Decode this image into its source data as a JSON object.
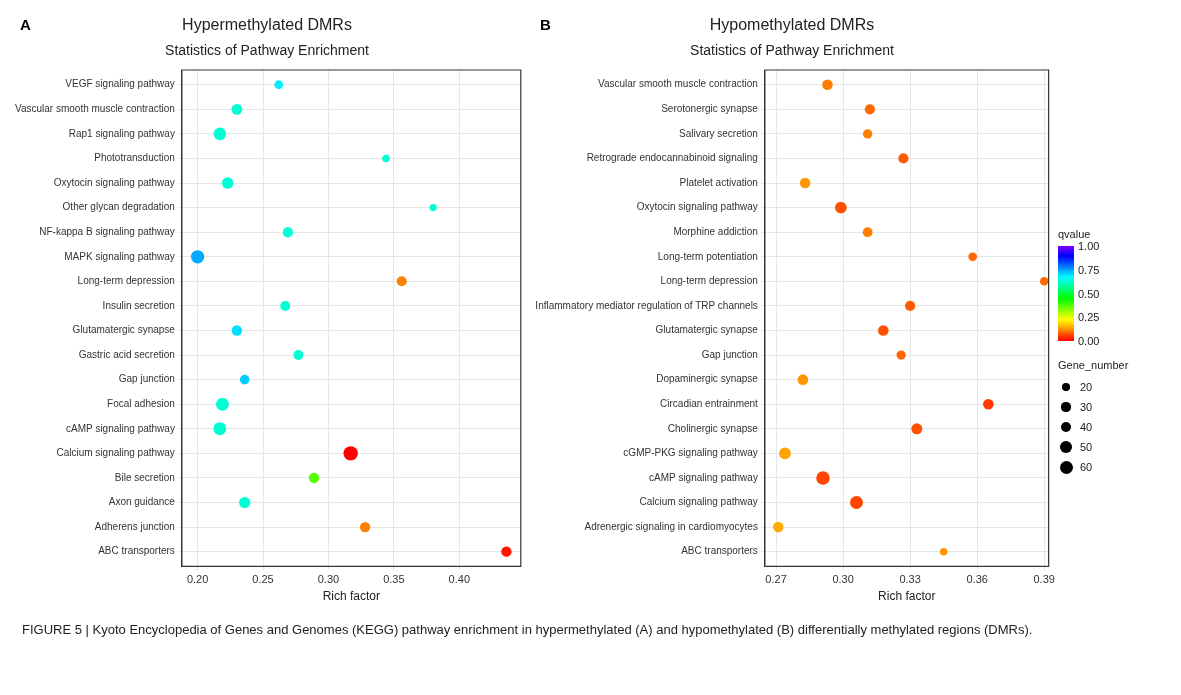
{
  "chart_data": [
    {
      "type": "bubble",
      "title": "Hypermethylated DMRs",
      "subtitle": "Statistics of Pathway Enrichment",
      "xlabel": "Rich factor",
      "orientation": "horizontal",
      "annotations": [
        "A"
      ],
      "categories": [
        "VEGF signaling pathway",
        "Vascular smooth muscle contraction",
        "Rap1 signaling pathway",
        "Phototransduction",
        "Oxytocin signaling pathway",
        "Other glycan degradation",
        "NF-kappa B signaling pathway",
        "MAPK signaling pathway",
        "Long-term depression",
        "Insulin secretion",
        "Glutamatergic synapse",
        "Gastric acid secretion",
        "Gap junction",
        "Focal adhesion",
        "cAMP signaling pathway",
        "Calcium signaling pathway",
        "Bile secretion",
        "Axon guidance",
        "Adherens junction",
        "ABC transporters"
      ],
      "values": [
        0.262,
        0.23,
        0.217,
        0.344,
        0.223,
        0.38,
        0.269,
        0.2,
        0.356,
        0.267,
        0.23,
        0.277,
        0.236,
        0.219,
        0.217,
        0.317,
        0.289,
        0.236,
        0.328,
        0.436
      ],
      "sizes": [
        0.37,
        0.56,
        0.76,
        0.28,
        0.65,
        0.25,
        0.52,
        0.85,
        0.48,
        0.48,
        0.52,
        0.48,
        0.44,
        0.8,
        0.8,
        1,
        0.52,
        0.61,
        0.52,
        0.52
      ],
      "colors": [
        "#00eeff",
        "#00ffd4",
        "#00ffd4",
        "#00ffd4",
        "#00ffd4",
        "#00ffd4",
        "#00ffd4",
        "#00aaff",
        "#ff8000",
        "#00ffd4",
        "#00dfff",
        "#00ffd4",
        "#00ccff",
        "#00ffd4",
        "#00ffd4",
        "#ff0000",
        "#55ff00",
        "#00ffd4",
        "#ff8000",
        "#ff1500"
      ],
      "xlim": [
        0.188,
        0.447
      ],
      "xticks": [
        {
          "value": 0.2,
          "label": "0.20"
        },
        {
          "value": 0.25,
          "label": "0.25"
        },
        {
          "value": 0.3,
          "label": "0.30"
        },
        {
          "value": 0.35,
          "label": "0.35"
        },
        {
          "value": 0.4,
          "label": "0.40"
        }
      ],
      "grid": true
    },
    {
      "type": "bubble",
      "title": "Hypomethylated DMRs",
      "subtitle": "Statistics of Pathway Enrichment",
      "xlabel": "Rich factor",
      "orientation": "horizontal",
      "annotations": [
        "B",
        "FIGURE 5 | Kyoto Encyclopedia of Genes and Genomes (KEGG) pathway enrichment in hypermethylated (A) and hypomethylated (B) differentially methylated regions (DMRs)."
      ],
      "categories": [
        "Vascular smooth muscle contraction",
        "Serotonergic synapse",
        "Salivary secretion",
        "Retrograde endocannabinoid signaling",
        "Platelet activation",
        "Oxytocin signaling pathway",
        "Morphine addiction",
        "Long-term potentiation",
        "Long-term depression",
        "Inflammatory mediator regulation of TRP channels",
        "Glutamatergic synapse",
        "Gap junction",
        "Dopaminergic synapse",
        "Circadian entrainment",
        "Cholinergic synapse",
        "cGMP-PKG signaling pathway",
        "cAMP signaling pathway",
        "Calcium signaling pathway",
        "Adrenergic signaling in cardiomyocytes",
        "ABC transporters"
      ],
      "values": [
        0.293,
        0.312,
        0.311,
        0.327,
        0.283,
        0.299,
        0.311,
        0.358,
        0.39,
        0.33,
        0.318,
        0.326,
        0.282,
        0.365,
        0.333,
        0.274,
        0.291,
        0.306,
        0.271,
        0.345
      ],
      "sizes": [
        40,
        37,
        31,
        37,
        40,
        49,
        34,
        26,
        26,
        37,
        40,
        31,
        40,
        40,
        43,
        49,
        65,
        60,
        40,
        20
      ],
      "cvalues": [
        0.11,
        0.09,
        0.11,
        0.08,
        0.13,
        0.07,
        0.11,
        0.09,
        0.09,
        0.08,
        0.07,
        0.09,
        0.13,
        0.05,
        0.07,
        0.14,
        0.06,
        0.06,
        0.15,
        0.13
      ],
      "xlim": [
        0.265,
        0.392
      ],
      "xticks": [
        0.27,
        {
          "value": 0.3,
          "label": "0.30"
        },
        0.33,
        0.36,
        0.39
      ],
      "grid": true,
      "clabel": "qvalue",
      "clim": [
        0,
        1
      ],
      "cticks": [
        {
          "value": 0,
          "label": "0.00"
        },
        {
          "value": 0.25,
          "label": "0.25"
        },
        {
          "value": 0.5,
          "label": "0.50"
        },
        {
          "value": 0.75,
          "label": "0.75"
        },
        {
          "value": 1,
          "label": "1.00"
        }
      ],
      "legend_title": "Gene_number",
      "size_legend": [
        20,
        30,
        40,
        50,
        60
      ]
    }
  ]
}
